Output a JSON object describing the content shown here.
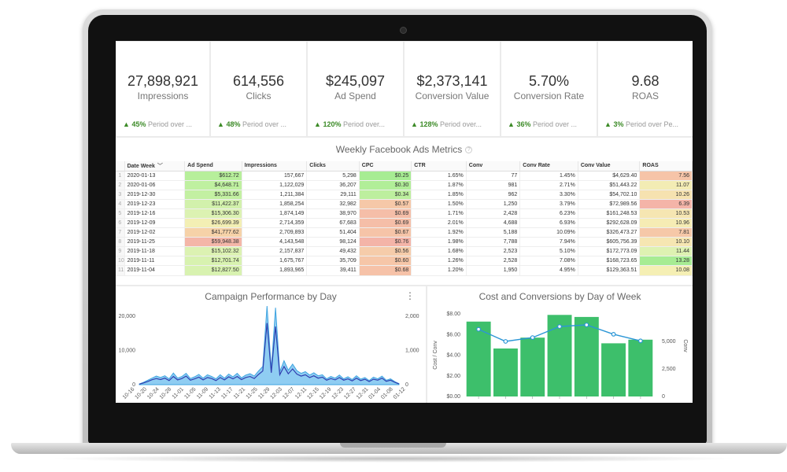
{
  "kpis": [
    {
      "value": "27,898,921",
      "label": "Impressions",
      "delta_pct": "45%",
      "delta_text": "Period over ..."
    },
    {
      "value": "614,556",
      "label": "Clicks",
      "delta_pct": "48%",
      "delta_text": "Period over ..."
    },
    {
      "value": "$245,097",
      "label": "Ad Spend",
      "delta_pct": "120%",
      "delta_text": "Period over..."
    },
    {
      "value": "$2,373,141",
      "label": "Conversion Value",
      "delta_pct": "128%",
      "delta_text": "Period over..."
    },
    {
      "value": "5.70%",
      "label": "Conversion Rate",
      "delta_pct": "36%",
      "delta_text": "Period over ..."
    },
    {
      "value": "9.68",
      "label": "ROAS",
      "delta_pct": "3%",
      "delta_text": "Period over Pe..."
    }
  ],
  "delta_arrow": "▲",
  "table": {
    "title": "Weekly Facebook Ads Metrics",
    "info_icon": "?",
    "sort_icon": "﹀",
    "columns": [
      "Date Week",
      "Ad Spend",
      "Impressions",
      "Clicks",
      "CPC",
      "CTR",
      "Conv",
      "Conv Rate",
      "Conv Value",
      "ROAS"
    ],
    "rows": [
      [
        "1",
        "2020-01-13",
        "$612.72",
        "157,667",
        "5,298",
        "$0.25",
        "1.65%",
        "77",
        "1.45%",
        "$4,629.40",
        "7.56"
      ],
      [
        "2",
        "2020-01-06",
        "$4,648.71",
        "1,122,029",
        "36,207",
        "$0.30",
        "1.87%",
        "981",
        "2.71%",
        "$51,443.22",
        "11.07"
      ],
      [
        "3",
        "2019-12-30",
        "$5,331.66",
        "1,211,384",
        "29,111",
        "$0.34",
        "1.85%",
        "962",
        "3.30%",
        "$54,702.10",
        "10.26"
      ],
      [
        "4",
        "2019-12-23",
        "$11,422.37",
        "1,858,254",
        "32,982",
        "$0.57",
        "1.50%",
        "1,250",
        "3.79%",
        "$72,989.56",
        "6.39"
      ],
      [
        "5",
        "2019-12-16",
        "$15,306.30",
        "1,874,149",
        "38,970",
        "$0.69",
        "1.71%",
        "2,428",
        "6.23%",
        "$161,248.53",
        "10.53"
      ],
      [
        "6",
        "2019-12-09",
        "$26,699.39",
        "2,714,359",
        "67,683",
        "$0.69",
        "2.01%",
        "4,688",
        "6.93%",
        "$292,628.09",
        "10.96"
      ],
      [
        "7",
        "2019-12-02",
        "$41,777.62",
        "2,709,893",
        "51,404",
        "$0.67",
        "1.92%",
        "5,188",
        "10.09%",
        "$326,473.27",
        "7.81"
      ],
      [
        "8",
        "2019-11-25",
        "$59,948.38",
        "4,143,548",
        "98,124",
        "$0.76",
        "1.98%",
        "7,788",
        "7.94%",
        "$605,756.39",
        "10.10"
      ],
      [
        "9",
        "2019-11-18",
        "$15,102.32",
        "2,157,837",
        "49,432",
        "$0.56",
        "1.68%",
        "2,523",
        "5.10%",
        "$172,773.09",
        "11.44"
      ],
      [
        "10",
        "2019-11-11",
        "$12,701.74",
        "1,675,767",
        "35,709",
        "$0.60",
        "1.26%",
        "2,528",
        "7.08%",
        "$168,723.65",
        "13.28"
      ],
      [
        "11",
        "2019-11-04",
        "$12,827.50",
        "1,893,965",
        "39,411",
        "$0.68",
        "1.20%",
        "1,950",
        "4.95%",
        "$129,363.51",
        "10.08"
      ]
    ],
    "ad_spend_colors": [
      "#b7ef9b",
      "#bff0a0",
      "#c3f0a2",
      "#d2f1ac",
      "#dcf2b2",
      "#f3efb4",
      "#f6d2a8",
      "#f4b6a8",
      "#dcf2b2",
      "#d8f2b0",
      "#d8f2b0"
    ],
    "cpc_colors": [
      "#a7ec93",
      "#b1ee98",
      "#bdef9e",
      "#f6c8a8",
      "#f5bea8",
      "#f5bea8",
      "#f6c4a8",
      "#f4b4a8",
      "#f6ccaa",
      "#f6c6a8",
      "#f6c2a8"
    ],
    "roas_colors": [
      "#f6c4a8",
      "#f3ecb4",
      "#f6e2b0",
      "#f4b4a8",
      "#f6e6b2",
      "#f6ecb4",
      "#f6c8a8",
      "#f6e6b2",
      "#def2b2",
      "#a7ec93",
      "#f5efb4"
    ]
  },
  "chart_data": [
    {
      "type": "area",
      "title": "Campaign Performance by Day",
      "menu_icon": "⋮",
      "y_left_ticks": [
        "20,000",
        "10,000",
        "0"
      ],
      "y_right_ticks": [
        "2,000",
        "1,000",
        "0"
      ],
      "ylim_left": [
        0,
        20000
      ],
      "ylim_right": [
        0,
        2000
      ],
      "x_ticks": [
        "10-16",
        "10-20",
        "10-24",
        "10-28",
        "11-01",
        "11-05",
        "11-09",
        "11-13",
        "11-17",
        "11-21",
        "11-25",
        "11-29",
        "12-03",
        "12-07",
        "12-11",
        "12-15",
        "12-19",
        "12-23",
        "12-27",
        "12-31",
        "01-04",
        "01-08",
        "01-12"
      ],
      "series": [
        {
          "values": [
            200,
            700,
            1300,
            1900,
            2500,
            2100,
            2600,
            1700,
            3400,
            1900,
            2400,
            3300,
            1800,
            2300,
            3000,
            1900,
            2900,
            2400,
            1700,
            2900,
            1900,
            3100,
            2300,
            3300,
            2000,
            2800,
            3200,
            2500,
            4000,
            5300,
            23000,
            4500,
            22500,
            3800,
            7000,
            4200,
            6000,
            4100,
            3300,
            3800,
            2800,
            3500,
            2600,
            2900,
            1700,
            2400,
            1900,
            2800,
            1700,
            2300,
            1500,
            2600,
            1600,
            2100,
            1200,
            2200,
            1700,
            2500,
            1300,
            1700,
            900,
            300
          ]
        },
        {
          "values": [
            150,
            500,
            950,
            1450,
            1800,
            1500,
            1900,
            1200,
            2400,
            1400,
            1800,
            2500,
            1300,
            1700,
            2200,
            1400,
            2100,
            1800,
            1200,
            2100,
            1400,
            2300,
            1700,
            2400,
            1500,
            2100,
            2400,
            1800,
            3000,
            4000,
            18000,
            3500,
            17000,
            2900,
            5300,
            3200,
            4600,
            3100,
            2500,
            2900,
            2100,
            2600,
            1900,
            2200,
            1300,
            1800,
            1400,
            2100,
            1300,
            1700,
            1100,
            1900,
            1200,
            1600,
            900,
            1600,
            1300,
            1900,
            1000,
            1300,
            700,
            200
          ]
        }
      ]
    },
    {
      "type": "bar",
      "title": "Cost and Conversions by Day of Week",
      "ylabel_left": "Cost / Conv",
      "ylabel_right": "Conv",
      "y_left_ticks": [
        "$8.00",
        "$6.00",
        "$4.00",
        "$2.00",
        "$0.00"
      ],
      "y_right_ticks": [
        "5,000",
        "2,500",
        "0"
      ],
      "ylim_left": [
        0,
        8
      ],
      "ylim_right": [
        0,
        7500
      ],
      "bar_color": "#3dbf6b",
      "line_color": "#2b96d6",
      "series": [
        {
          "name": "Cost / Conv",
          "values": [
            7.25,
            4.65,
            5.7,
            7.9,
            7.7,
            5.15,
            5.5
          ]
        },
        {
          "name": "Conv",
          "values": [
            6100,
            5000,
            5350,
            6350,
            6500,
            5650,
            5050
          ]
        }
      ]
    }
  ]
}
